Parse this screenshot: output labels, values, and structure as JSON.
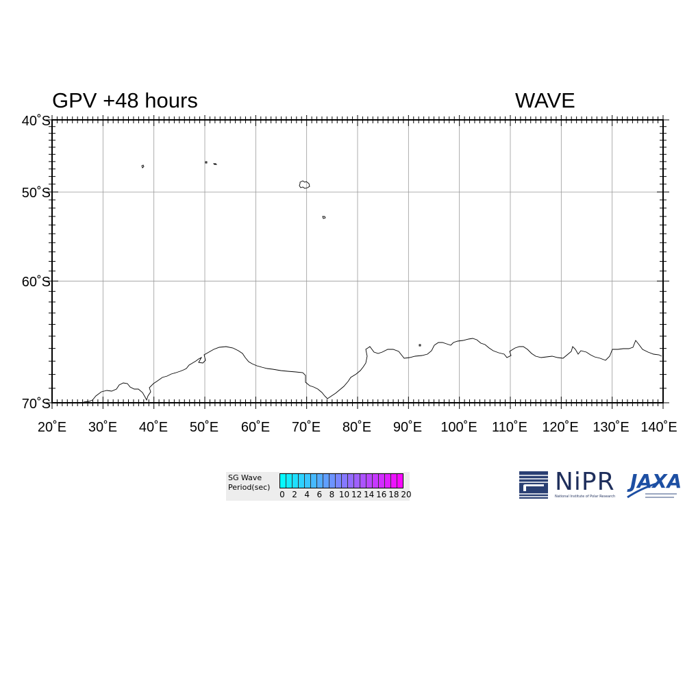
{
  "title": {
    "left": "GPV +48 hours",
    "right": "WAVE"
  },
  "map": {
    "lat_labels": [
      "40˚S",
      "50˚S",
      "60˚S",
      "70˚S"
    ],
    "lon_labels": [
      "20˚E",
      "30˚E",
      "40˚E",
      "50˚E",
      "60˚E",
      "70˚E",
      "80˚E",
      "90˚E",
      "100˚E",
      "110˚E",
      "120˚E",
      "130˚E",
      "140˚E"
    ],
    "lon_range": [
      20,
      140
    ],
    "lat_range": [
      -40,
      -70
    ],
    "grid": true,
    "coastline_color": "#000000",
    "grid_color": "#999999"
  },
  "legend": {
    "label_line1": "SG Wave",
    "label_line2": "Period(sec)",
    "ticks": [
      "0",
      "2",
      "4",
      "6",
      "8",
      "10",
      "12",
      "14",
      "16",
      "18",
      "20"
    ],
    "color_start": "#00ffff",
    "color_end": "#ff00ff",
    "cells": 20
  },
  "logos": {
    "nipr_name": "NiPR",
    "nipr_subtitle": "National Institute of Polar Research",
    "jaxa_name": "JAXA"
  }
}
